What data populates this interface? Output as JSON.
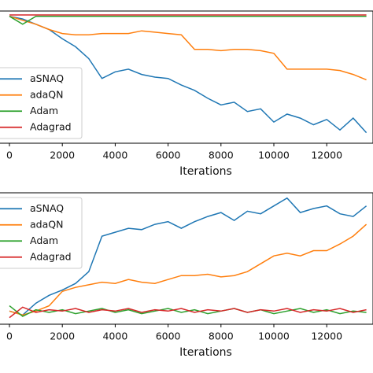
{
  "chart_data": [
    {
      "type": "line",
      "xlabel": "Iterations",
      "xlim": [
        -357,
        13720
      ],
      "ylim": [
        0,
        1
      ],
      "xticks": [
        0,
        2000,
        4000,
        6000,
        8000,
        10000,
        12000
      ],
      "legend": "lower left",
      "x": [
        0,
        500,
        1000,
        1500,
        2000,
        2500,
        3000,
        3500,
        4000,
        4500,
        5000,
        5500,
        6000,
        6500,
        7000,
        7500,
        8000,
        8500,
        9000,
        9500,
        10000,
        10500,
        11000,
        11500,
        12000,
        12500,
        13000,
        13500
      ],
      "series": [
        {
          "name": "aSNAQ",
          "color": "#1f77b4",
          "values": [
            0.96,
            0.94,
            0.9,
            0.86,
            0.79,
            0.73,
            0.64,
            0.49,
            0.54,
            0.56,
            0.52,
            0.5,
            0.49,
            0.44,
            0.4,
            0.34,
            0.29,
            0.31,
            0.24,
            0.26,
            0.16,
            0.22,
            0.19,
            0.14,
            0.18,
            0.1,
            0.19,
            0.08
          ]
        },
        {
          "name": "adaQN",
          "color": "#ff7f0e",
          "values": [
            0.96,
            0.93,
            0.9,
            0.86,
            0.83,
            0.82,
            0.82,
            0.83,
            0.83,
            0.83,
            0.85,
            0.84,
            0.83,
            0.82,
            0.71,
            0.71,
            0.7,
            0.71,
            0.71,
            0.7,
            0.68,
            0.56,
            0.56,
            0.56,
            0.56,
            0.55,
            0.52,
            0.48
          ]
        },
        {
          "name": "Adam",
          "color": "#2ca02c",
          "values": [
            0.96,
            0.9,
            0.96,
            0.96,
            0.96,
            0.96,
            0.96,
            0.96,
            0.96,
            0.96,
            0.96,
            0.96,
            0.96,
            0.96,
            0.96,
            0.96,
            0.96,
            0.96,
            0.96,
            0.96,
            0.96,
            0.96,
            0.96,
            0.96,
            0.96,
            0.96,
            0.96,
            0.96
          ]
        },
        {
          "name": "Adagrad",
          "color": "#d62728",
          "values": [
            0.97,
            0.97,
            0.97,
            0.97,
            0.97,
            0.97,
            0.97,
            0.97,
            0.97,
            0.97,
            0.97,
            0.97,
            0.97,
            0.97,
            0.97,
            0.97,
            0.97,
            0.97,
            0.97,
            0.97,
            0.97,
            0.97,
            0.97,
            0.97,
            0.97,
            0.97,
            0.97,
            0.97
          ]
        }
      ]
    },
    {
      "type": "line",
      "xlabel": "Iterations",
      "xlim": [
        -357,
        13720
      ],
      "ylim": [
        0,
        1
      ],
      "xticks": [
        0,
        2000,
        4000,
        6000,
        8000,
        10000,
        12000
      ],
      "legend": "upper left",
      "x": [
        0,
        500,
        1000,
        1500,
        2000,
        2500,
        3000,
        3500,
        4000,
        4500,
        5000,
        5500,
        6000,
        6500,
        7000,
        7500,
        8000,
        8500,
        9000,
        9500,
        10000,
        10500,
        11000,
        11500,
        12000,
        12500,
        13000,
        13500
      ],
      "series": [
        {
          "name": "aSNAQ",
          "color": "#1f77b4",
          "values": [
            0.1,
            0.07,
            0.16,
            0.22,
            0.26,
            0.31,
            0.4,
            0.67,
            0.7,
            0.73,
            0.72,
            0.76,
            0.78,
            0.73,
            0.78,
            0.82,
            0.85,
            0.79,
            0.86,
            0.84,
            0.9,
            0.96,
            0.85,
            0.88,
            0.9,
            0.84,
            0.82,
            0.9
          ]
        },
        {
          "name": "adaQN",
          "color": "#ff7f0e",
          "values": [
            0.1,
            0.07,
            0.1,
            0.14,
            0.25,
            0.28,
            0.3,
            0.32,
            0.31,
            0.34,
            0.32,
            0.31,
            0.34,
            0.37,
            0.37,
            0.38,
            0.36,
            0.37,
            0.4,
            0.46,
            0.52,
            0.54,
            0.52,
            0.56,
            0.56,
            0.61,
            0.67,
            0.76
          ]
        },
        {
          "name": "Adam",
          "color": "#2ca02c",
          "values": [
            0.14,
            0.06,
            0.11,
            0.09,
            0.11,
            0.08,
            0.1,
            0.12,
            0.09,
            0.11,
            0.08,
            0.1,
            0.12,
            0.09,
            0.11,
            0.08,
            0.1,
            0.12,
            0.09,
            0.11,
            0.08,
            0.1,
            0.12,
            0.09,
            0.11,
            0.08,
            0.1,
            0.09
          ]
        },
        {
          "name": "Adagrad",
          "color": "#d62728",
          "values": [
            0.05,
            0.13,
            0.09,
            0.11,
            0.1,
            0.12,
            0.09,
            0.11,
            0.1,
            0.12,
            0.09,
            0.11,
            0.1,
            0.12,
            0.09,
            0.11,
            0.1,
            0.12,
            0.09,
            0.11,
            0.1,
            0.12,
            0.09,
            0.11,
            0.1,
            0.12,
            0.09,
            0.11
          ]
        }
      ]
    }
  ]
}
